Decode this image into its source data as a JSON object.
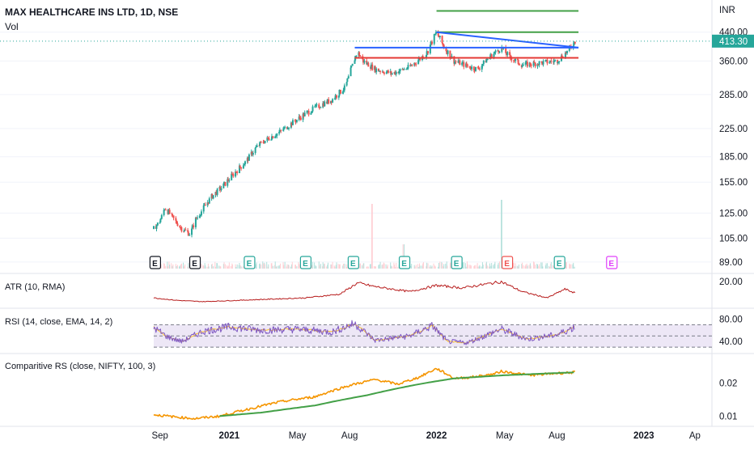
{
  "header": {
    "title": "MAX HEALTHCARE INS LTD, 1D, NSE",
    "volume_label": "Vol",
    "currency": "INR",
    "last_price": "413.30"
  },
  "colors": {
    "up": "#26a69a",
    "down": "#ef5350",
    "green_line": "#43a047",
    "blue_line": "#2962ff",
    "red_line": "#e53935",
    "atr_line": "#b71c1c",
    "rsi_line": "#7e57c2",
    "rsi_ema": "#fbc02d",
    "rsi_band": "#ede7f6",
    "rs_line": "#f59500",
    "rs_ma": "#43a047",
    "earnings_past": "#131722",
    "earnings_future": "#e040fb"
  },
  "chart_data": [
    {
      "type": "candlestick",
      "pane": "price",
      "scale": "log",
      "x_axis_ticks": [
        "Sep",
        "2021",
        "May",
        "Aug",
        "2022",
        "May",
        "Aug",
        "2023",
        "Ap"
      ],
      "y_ticks": [
        "440.00",
        "360.00",
        "285.00",
        "225.00",
        "185.00",
        "155.00",
        "125.00",
        "105.00",
        "89.00"
      ],
      "ylim": [
        85,
        520
      ],
      "last_price": 413.3,
      "close_path": [
        [
          "2020-08-21",
          112
        ],
        [
          "2020-09-01",
          118
        ],
        [
          "2020-09-10",
          130
        ],
        [
          "2020-09-25",
          120
        ],
        [
          "2020-10-10",
          112
        ],
        [
          "2020-10-25",
          108
        ],
        [
          "2020-11-01",
          118
        ],
        [
          "2020-11-15",
          128
        ],
        [
          "2020-12-01",
          140
        ],
        [
          "2020-12-20",
          150
        ],
        [
          "2021-01-10",
          165
        ],
        [
          "2021-02-01",
          180
        ],
        [
          "2021-02-15",
          195
        ],
        [
          "2021-03-01",
          205
        ],
        [
          "2021-04-01",
          220
        ],
        [
          "2021-05-01",
          240
        ],
        [
          "2021-06-01",
          260
        ],
        [
          "2021-07-01",
          275
        ],
        [
          "2021-07-25",
          300
        ],
        [
          "2021-08-05",
          345
        ],
        [
          "2021-08-15",
          385
        ],
        [
          "2021-08-25",
          360
        ],
        [
          "2021-09-15",
          340
        ],
        [
          "2021-10-15",
          330
        ],
        [
          "2021-11-15",
          345
        ],
        [
          "2021-12-15",
          380
        ],
        [
          "2022-01-01",
          440
        ],
        [
          "2022-01-15",
          395
        ],
        [
          "2022-02-01",
          360
        ],
        [
          "2022-03-01",
          345
        ],
        [
          "2022-03-15",
          340
        ],
        [
          "2022-04-01",
          365
        ],
        [
          "2022-04-25",
          395
        ],
        [
          "2022-05-10",
          370
        ],
        [
          "2022-06-01",
          350
        ],
        [
          "2022-07-01",
          355
        ],
        [
          "2022-08-01",
          360
        ],
        [
          "2022-08-20",
          385
        ],
        [
          "2022-09-02",
          413.3
        ]
      ],
      "drawings": [
        {
          "name": "upper-target",
          "color": "green",
          "y": 510,
          "from": "2022-01-01",
          "to": "2022-09-08"
        },
        {
          "name": "mid-target",
          "color": "green",
          "y": 440,
          "from": "2022-01-01",
          "to": "2022-09-08"
        },
        {
          "name": "resistance",
          "color": "blue",
          "y": 395,
          "from": "2021-08-10",
          "to": "2022-09-08"
        },
        {
          "name": "support",
          "color": "red",
          "y": 368,
          "from": "2021-08-10",
          "to": "2022-09-08"
        },
        {
          "name": "trendline",
          "color": "blue",
          "y_from": 440,
          "y_to": 395,
          "from": "2022-01-01",
          "to": "2022-09-08"
        }
      ],
      "earnings_markers": [
        {
          "label": "E",
          "date": "2020-08-23",
          "style": "past-neutral"
        },
        {
          "label": "E",
          "date": "2020-11-01",
          "style": "past-neutral"
        },
        {
          "label": "E",
          "date": "2021-02-05",
          "style": "past-up"
        },
        {
          "label": "E",
          "date": "2021-05-15",
          "style": "past-up"
        },
        {
          "label": "E",
          "date": "2021-08-07",
          "style": "past-up"
        },
        {
          "label": "E",
          "date": "2021-11-05",
          "style": "past-up"
        },
        {
          "label": "E",
          "date": "2022-02-05",
          "style": "past-up"
        },
        {
          "label": "E",
          "date": "2022-05-05",
          "style": "past-down"
        },
        {
          "label": "E",
          "date": "2022-08-05",
          "style": "past-up"
        },
        {
          "label": "E",
          "date": "2022-11-05",
          "style": "future"
        }
      ]
    },
    {
      "type": "line",
      "pane": "atr",
      "title": "ATR (10, RMA)",
      "y_ticks": [
        "20.00"
      ],
      "ylim": [
        0,
        24
      ],
      "series": [
        {
          "values_path": [
            [
              "2020-08-21",
              7
            ],
            [
              "2020-10-01",
              5
            ],
            [
              "2020-11-15",
              4
            ],
            [
              "2021-01-15",
              5
            ],
            [
              "2021-03-15",
              6
            ],
            [
              "2021-05-15",
              7
            ],
            [
              "2021-07-15",
              10
            ],
            [
              "2021-08-15",
              19
            ],
            [
              "2021-09-15",
              16
            ],
            [
              "2021-11-15",
              12
            ],
            [
              "2022-01-01",
              17
            ],
            [
              "2022-02-15",
              15
            ],
            [
              "2022-03-15",
              17
            ],
            [
              "2022-04-25",
              20
            ],
            [
              "2022-06-01",
              12
            ],
            [
              "2022-07-15",
              7
            ],
            [
              "2022-08-15",
              14
            ],
            [
              "2022-09-02",
              11
            ]
          ]
        }
      ]
    },
    {
      "type": "line",
      "pane": "rsi",
      "title": "RSI (14, close, EMA, 14, 2)",
      "y_ticks": [
        "80.00",
        "40.00"
      ],
      "ylim": [
        20,
        95
      ],
      "bands": {
        "upper": 70,
        "middle": 50,
        "lower": 30
      },
      "series": [
        {
          "name": "RSI",
          "values_path": [
            [
              "2020-08-21",
              65
            ],
            [
              "2020-09-15",
              48
            ],
            [
              "2020-10-10",
              40
            ],
            [
              "2020-11-15",
              58
            ],
            [
              "2021-01-01",
              66
            ],
            [
              "2021-03-01",
              60
            ],
            [
              "2021-05-01",
              62
            ],
            [
              "2021-07-01",
              57
            ],
            [
              "2021-08-10",
              72
            ],
            [
              "2021-09-15",
              42
            ],
            [
              "2021-11-15",
              50
            ],
            [
              "2021-12-25",
              68
            ],
            [
              "2022-01-20",
              40
            ],
            [
              "2022-02-25",
              38
            ],
            [
              "2022-04-25",
              62
            ],
            [
              "2022-06-10",
              44
            ],
            [
              "2022-08-01",
              52
            ],
            [
              "2022-09-02",
              66
            ]
          ]
        }
      ]
    },
    {
      "type": "line",
      "pane": "comparative-rs",
      "title": "Comparitive RS (close, NIFTY, 100, 3)",
      "y_ticks": [
        "0.02",
        "0.01"
      ],
      "scale": "log",
      "ylim": [
        0.0085,
        0.034
      ],
      "series": [
        {
          "values_path": [
            [
              "2020-08-21",
              0.0103
            ],
            [
              "2020-10-01",
              0.0098
            ],
            [
              "2020-11-01",
              0.0095
            ],
            [
              "2020-12-15",
              0.01
            ],
            [
              "2021-02-01",
              0.0115
            ],
            [
              "2021-04-01",
              0.0135
            ],
            [
              "2021-06-01",
              0.015
            ],
            [
              "2021-08-01",
              0.019
            ],
            [
              "2021-09-15",
              0.0215
            ],
            [
              "2021-10-25",
              0.0195
            ],
            [
              "2021-12-01",
              0.0225
            ],
            [
              "2022-01-01",
              0.027
            ],
            [
              "2022-02-01",
              0.022
            ],
            [
              "2022-03-01",
              0.0225
            ],
            [
              "2022-04-10",
              0.024
            ],
            [
              "2022-04-25",
              0.0255
            ],
            [
              "2022-06-15",
              0.0235
            ],
            [
              "2022-08-01",
              0.0245
            ],
            [
              "2022-09-02",
              0.025
            ]
          ]
        },
        {
          "values_path": [
            [
              "2020-12-15",
              0.01
            ],
            [
              "2021-03-01",
              0.0108
            ],
            [
              "2021-06-01",
              0.0125
            ],
            [
              "2021-09-01",
              0.0155
            ],
            [
              "2021-12-01",
              0.0195
            ],
            [
              "2022-02-01",
              0.022
            ],
            [
              "2022-05-01",
              0.0235
            ],
            [
              "2022-09-02",
              0.025
            ]
          ]
        }
      ]
    }
  ]
}
